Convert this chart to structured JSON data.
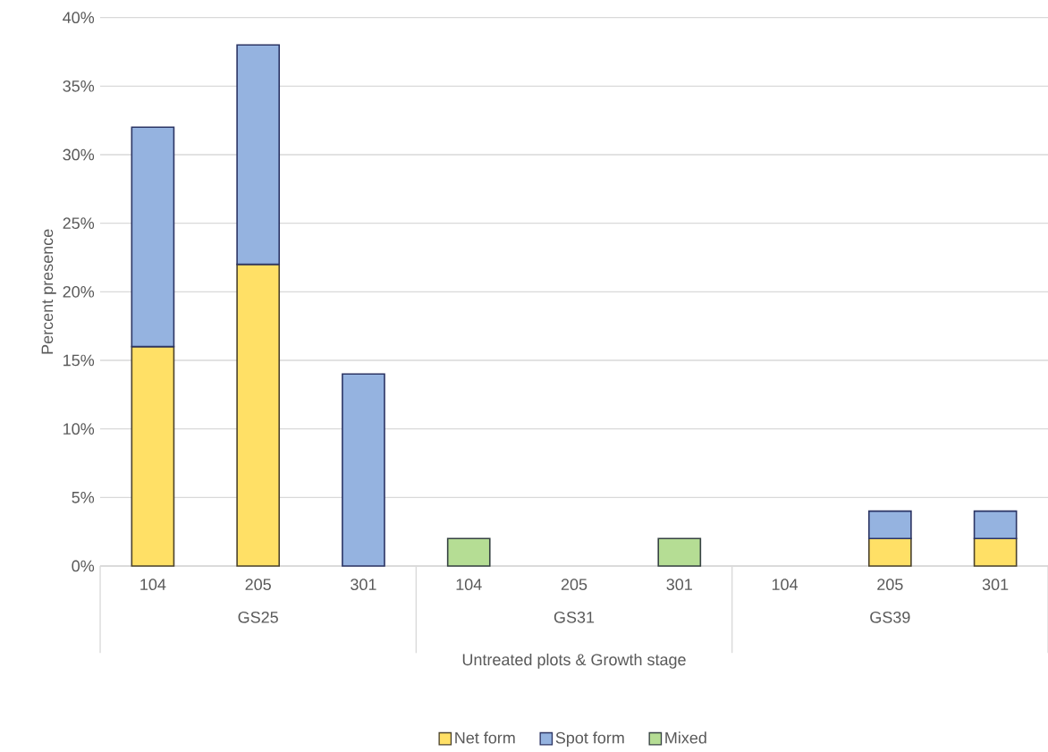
{
  "chart_data": {
    "type": "bar",
    "stacked": true,
    "xlabel": "Untreated plots & Growth stage",
    "ylabel": "Percent presence",
    "categories": [
      "104",
      "205",
      "301",
      "104",
      "205",
      "301",
      "104",
      "205",
      "301"
    ],
    "annotations": [
      "GS25",
      "GS31",
      "GS39"
    ],
    "series": [
      {
        "name": "Net form",
        "color": "#ffe066",
        "values": [
          16,
          22,
          null,
          null,
          null,
          null,
          null,
          2,
          2
        ]
      },
      {
        "name": "Spot form",
        "color": "#95b3e0",
        "values": [
          16,
          16,
          14,
          null,
          null,
          null,
          null,
          2,
          2
        ]
      },
      {
        "name": "Mixed",
        "color": "#b5dd94",
        "values": [
          null,
          null,
          null,
          2,
          null,
          2,
          null,
          null,
          null
        ]
      }
    ],
    "ylim": [
      0,
      40
    ],
    "yticks": [
      {
        "value": 0,
        "label": "0%"
      },
      {
        "value": 5,
        "label": "5%"
      },
      {
        "value": 10,
        "label": "10%"
      },
      {
        "value": 15,
        "label": "15%"
      },
      {
        "value": 20,
        "label": "20%"
      },
      {
        "value": 25,
        "label": "25%"
      },
      {
        "value": 30,
        "label": "30%"
      },
      {
        "value": 35,
        "label": "35%"
      },
      {
        "value": 40,
        "label": "40%"
      }
    ],
    "grid": "y",
    "legend": "bottom"
  }
}
